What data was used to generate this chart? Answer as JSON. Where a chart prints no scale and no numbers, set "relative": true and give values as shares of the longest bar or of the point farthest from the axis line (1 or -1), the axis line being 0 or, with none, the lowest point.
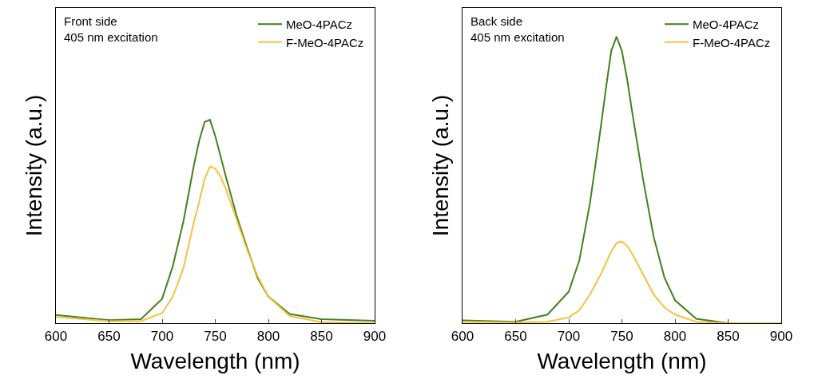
{
  "chart_data": [
    {
      "type": "line",
      "relative": true,
      "xlabel": "Wavelength (nm)",
      "ylabel": "Intensity (a.u.)",
      "annotations": [
        "Front side\n405 nm excitation"
      ],
      "xlim": [
        600,
        900
      ],
      "xticks": [
        600,
        650,
        700,
        750,
        800,
        850,
        900
      ],
      "legend": "top right",
      "grid": false,
      "tick_labels": "x",
      "x": [
        600,
        650,
        680,
        700,
        710,
        720,
        730,
        735,
        740,
        745,
        750,
        755,
        760,
        770,
        780,
        790,
        800,
        820,
        850,
        900
      ],
      "series": [
        {
          "name": "MeO-4PACz",
          "color": "#46801e",
          "values": [
            0.04,
            0.015,
            0.02,
            0.12,
            0.28,
            0.5,
            0.78,
            0.9,
            0.99,
            1,
            0.92,
            0.82,
            0.72,
            0.53,
            0.37,
            0.22,
            0.13,
            0.045,
            0.02,
            0.012
          ]
        },
        {
          "name": "F-MeO-4PACz",
          "color": "#f6c142",
          "values": [
            0.03,
            0.01,
            0.01,
            0.05,
            0.13,
            0.27,
            0.5,
            0.6,
            0.71,
            0.77,
            0.76,
            0.72,
            0.66,
            0.51,
            0.36,
            0.23,
            0.13,
            0.035,
            0.005,
            0
          ]
        }
      ]
    },
    {
      "type": "line",
      "relative": true,
      "xlabel": "Wavelength (nm)",
      "ylabel": "Intensity (a.u.)",
      "annotations": [
        "Back side\n405 nm excitation"
      ],
      "xlim": [
        600,
        900
      ],
      "xticks": [
        600,
        650,
        700,
        750,
        800,
        850,
        900
      ],
      "legend": "top right",
      "grid": false,
      "tick_labels": "x",
      "x": [
        600,
        650,
        680,
        700,
        710,
        720,
        730,
        735,
        740,
        745,
        750,
        755,
        760,
        770,
        780,
        790,
        800,
        820,
        850,
        900
      ],
      "series": [
        {
          "name": "MeO-4PACz",
          "color": "#46801e",
          "values": [
            0.01,
            0.005,
            0.03,
            0.11,
            0.22,
            0.42,
            0.68,
            0.82,
            0.95,
            1,
            0.95,
            0.85,
            0.73,
            0.5,
            0.3,
            0.16,
            0.08,
            0.015,
            0,
            0
          ]
        },
        {
          "name": "F-MeO-4PACz",
          "color": "#f6c142",
          "values": [
            0.005,
            0.003,
            0.005,
            0.02,
            0.045,
            0.1,
            0.17,
            0.21,
            0.25,
            0.28,
            0.285,
            0.27,
            0.24,
            0.17,
            0.1,
            0.055,
            0.03,
            0.005,
            0,
            0
          ]
        }
      ]
    }
  ]
}
